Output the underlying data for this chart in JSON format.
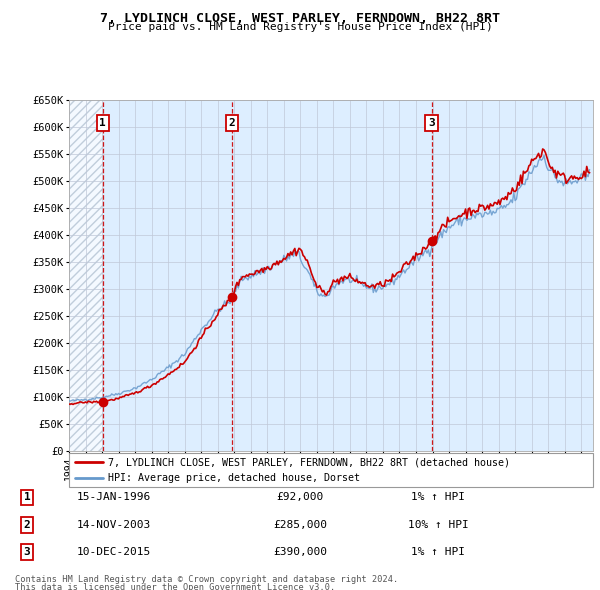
{
  "title": "7, LYDLINCH CLOSE, WEST PARLEY, FERNDOWN, BH22 8RT",
  "subtitle": "Price paid vs. HM Land Registry's House Price Index (HPI)",
  "legend_line1": "7, LYDLINCH CLOSE, WEST PARLEY, FERNDOWN, BH22 8RT (detached house)",
  "legend_line2": "HPI: Average price, detached house, Dorset",
  "sale_year_floats": [
    1996.04,
    2003.87,
    2015.94
  ],
  "sale_prices": [
    92000,
    285000,
    390000
  ],
  "sale_labels": [
    "1",
    "2",
    "3"
  ],
  "table_dates": [
    "15-JAN-1996",
    "14-NOV-2003",
    "10-DEC-2015"
  ],
  "table_prices": [
    "£92,000",
    "£285,000",
    "£390,000"
  ],
  "table_pcts": [
    "1% ↑ HPI",
    "10% ↑ HPI",
    "1% ↑ HPI"
  ],
  "ylim": [
    0,
    650000
  ],
  "yticks": [
    0,
    50000,
    100000,
    150000,
    200000,
    250000,
    300000,
    350000,
    400000,
    450000,
    500000,
    550000,
    600000,
    650000
  ],
  "ytick_labels": [
    "£0",
    "£50K",
    "£100K",
    "£150K",
    "£200K",
    "£250K",
    "£300K",
    "£350K",
    "£400K",
    "£450K",
    "£500K",
    "£550K",
    "£600K",
    "£650K"
  ],
  "xlim_start": 1994.0,
  "xlim_end": 2025.7,
  "red_color": "#cc0000",
  "blue_color": "#6699cc",
  "bg_color": "#ddeeff",
  "hatch_color": "#aabbcc",
  "grid_color": "#c0c8d8",
  "footer1": "Contains HM Land Registry data © Crown copyright and database right 2024.",
  "footer2": "This data is licensed under the Open Government Licence v3.0."
}
